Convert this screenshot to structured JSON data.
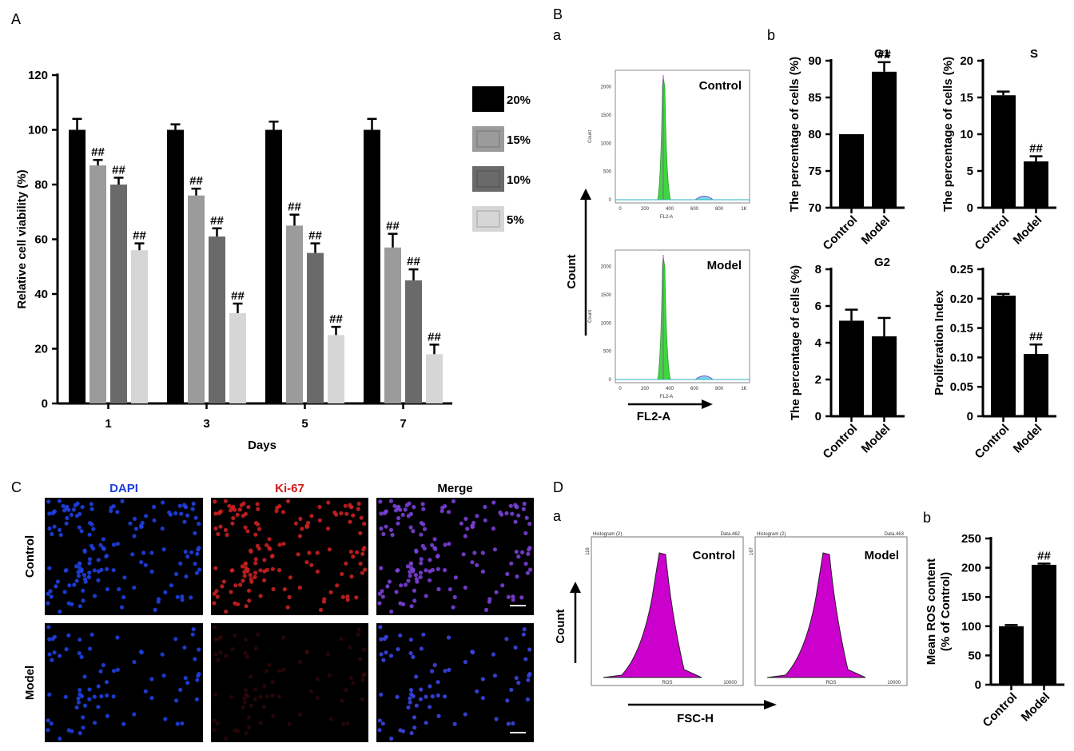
{
  "colors": {
    "black": "#000000",
    "c15": "#9b9b9b",
    "c10": "#6a6a6a",
    "c5": "#d6d6d6",
    "green": "#3fd640",
    "magenta": "#cc00cc",
    "dapi": "#1f3fe0",
    "ki67": "#d01818"
  },
  "panel_labels": {
    "A": "A",
    "B": "B",
    "Ba": "a",
    "Bb": "b",
    "C": "C",
    "D": "D",
    "Da": "a",
    "Db": "b"
  },
  "chart_data": [
    {
      "id": "A",
      "type": "bar",
      "xlabel": "Days",
      "ylabel": "Relative cell viability (%)",
      "ylim": [
        0,
        120
      ],
      "yticks": [
        0,
        20,
        40,
        60,
        80,
        100,
        120
      ],
      "categories": [
        "1",
        "3",
        "5",
        "7"
      ],
      "series": [
        {
          "name": "20%",
          "color": "#000000",
          "values": [
            100,
            100,
            100,
            100
          ],
          "errors": [
            4,
            2,
            3,
            4
          ],
          "marks": [
            "",
            "",
            "",
            ""
          ]
        },
        {
          "name": "15%",
          "color": "#9b9b9b",
          "values": [
            87,
            76,
            65,
            57
          ],
          "errors": [
            2,
            2.5,
            4,
            5
          ],
          "marks": [
            "##",
            "##",
            "##",
            "##"
          ]
        },
        {
          "name": "10%",
          "color": "#6a6a6a",
          "values": [
            80,
            61,
            55,
            45
          ],
          "errors": [
            2.5,
            3,
            3.5,
            4
          ],
          "marks": [
            "##",
            "##",
            "##",
            "##"
          ]
        },
        {
          "name": "5%",
          "color": "#d6d6d6",
          "values": [
            56,
            33,
            25,
            18
          ],
          "errors": [
            2.5,
            3.5,
            3,
            3.5
          ],
          "marks": [
            "##",
            "##",
            "##",
            "##"
          ]
        }
      ],
      "legend": "right"
    },
    {
      "id": "G1",
      "type": "bar",
      "title": "G1",
      "ylabel": "The percentage of cells (%)",
      "categories": [
        "Control",
        "Model"
      ],
      "values": [
        80,
        88.5
      ],
      "errors": [
        0,
        1.3
      ],
      "marks": [
        "",
        "##"
      ],
      "ylim": [
        70,
        90
      ],
      "yticks": [
        70,
        75,
        80,
        85,
        90
      ]
    },
    {
      "id": "S",
      "type": "bar",
      "title": "S",
      "ylabel": "The percentage of cells (%)",
      "categories": [
        "Control",
        "Model"
      ],
      "values": [
        15.3,
        6.3
      ],
      "errors": [
        0.5,
        0.7
      ],
      "marks": [
        "",
        "##"
      ],
      "ylim": [
        0,
        20
      ],
      "yticks": [
        0,
        5,
        10,
        15,
        20
      ]
    },
    {
      "id": "G2",
      "type": "bar",
      "title": "G2",
      "ylabel": "The percentage of cells (%)",
      "categories": [
        "Control",
        "Model"
      ],
      "values": [
        5.2,
        4.35
      ],
      "errors": [
        0.6,
        1.0
      ],
      "marks": [
        "",
        ""
      ],
      "ylim": [
        0,
        8
      ],
      "yticks": [
        0,
        2,
        4,
        6,
        8
      ]
    },
    {
      "id": "PI",
      "type": "bar",
      "title": "",
      "ylabel": "Proliferation Index",
      "categories": [
        "Control",
        "Model"
      ],
      "values": [
        0.205,
        0.106
      ],
      "errors": [
        0.003,
        0.016
      ],
      "marks": [
        "",
        "##"
      ],
      "ylim": [
        0,
        0.25
      ],
      "yticks": [
        "0",
        "0.05",
        "0.10",
        "0.15",
        "0.20",
        "0.25"
      ]
    },
    {
      "id": "ROS",
      "type": "bar",
      "title": "",
      "ylabel": "Mean ROS content (% of Control)",
      "ylabel_lines": [
        "Mean ROS content",
        "(% of Control)"
      ],
      "categories": [
        "Control",
        "Model"
      ],
      "values": [
        100,
        205
      ],
      "errors": [
        2,
        2
      ],
      "marks": [
        "",
        "##"
      ],
      "ylim": [
        0,
        250
      ],
      "yticks": [
        0,
        50,
        100,
        150,
        200,
        250
      ]
    }
  ],
  "flow_B": {
    "plots": [
      {
        "name": "Control"
      },
      {
        "name": "Model"
      }
    ],
    "yticks": [
      "0",
      "500",
      "1000",
      "1500",
      "2000"
    ],
    "xticks": [
      "0",
      "200",
      "400",
      "600",
      "800",
      "1K"
    ],
    "xlabel_small": "FL2-A",
    "ylabel_small": "Count",
    "axis_x": "FL2-A",
    "axis_y": "Count"
  },
  "flow_D": {
    "plots": [
      {
        "name": "Control",
        "header": "Histogram (2)",
        "data": "Data.462",
        "ymax": "116"
      },
      {
        "name": "Model",
        "header": "Histogram (2)",
        "data": "Data.463",
        "ymax": "167"
      }
    ],
    "xlabel_small": "ROS",
    "xmax": "10000",
    "axis_x": "FSC-H",
    "axis_y": "Count"
  },
  "micro_C": {
    "columns": [
      "DAPI",
      "Ki-67",
      "Merge"
    ],
    "rows": [
      "Control",
      "Model"
    ]
  }
}
